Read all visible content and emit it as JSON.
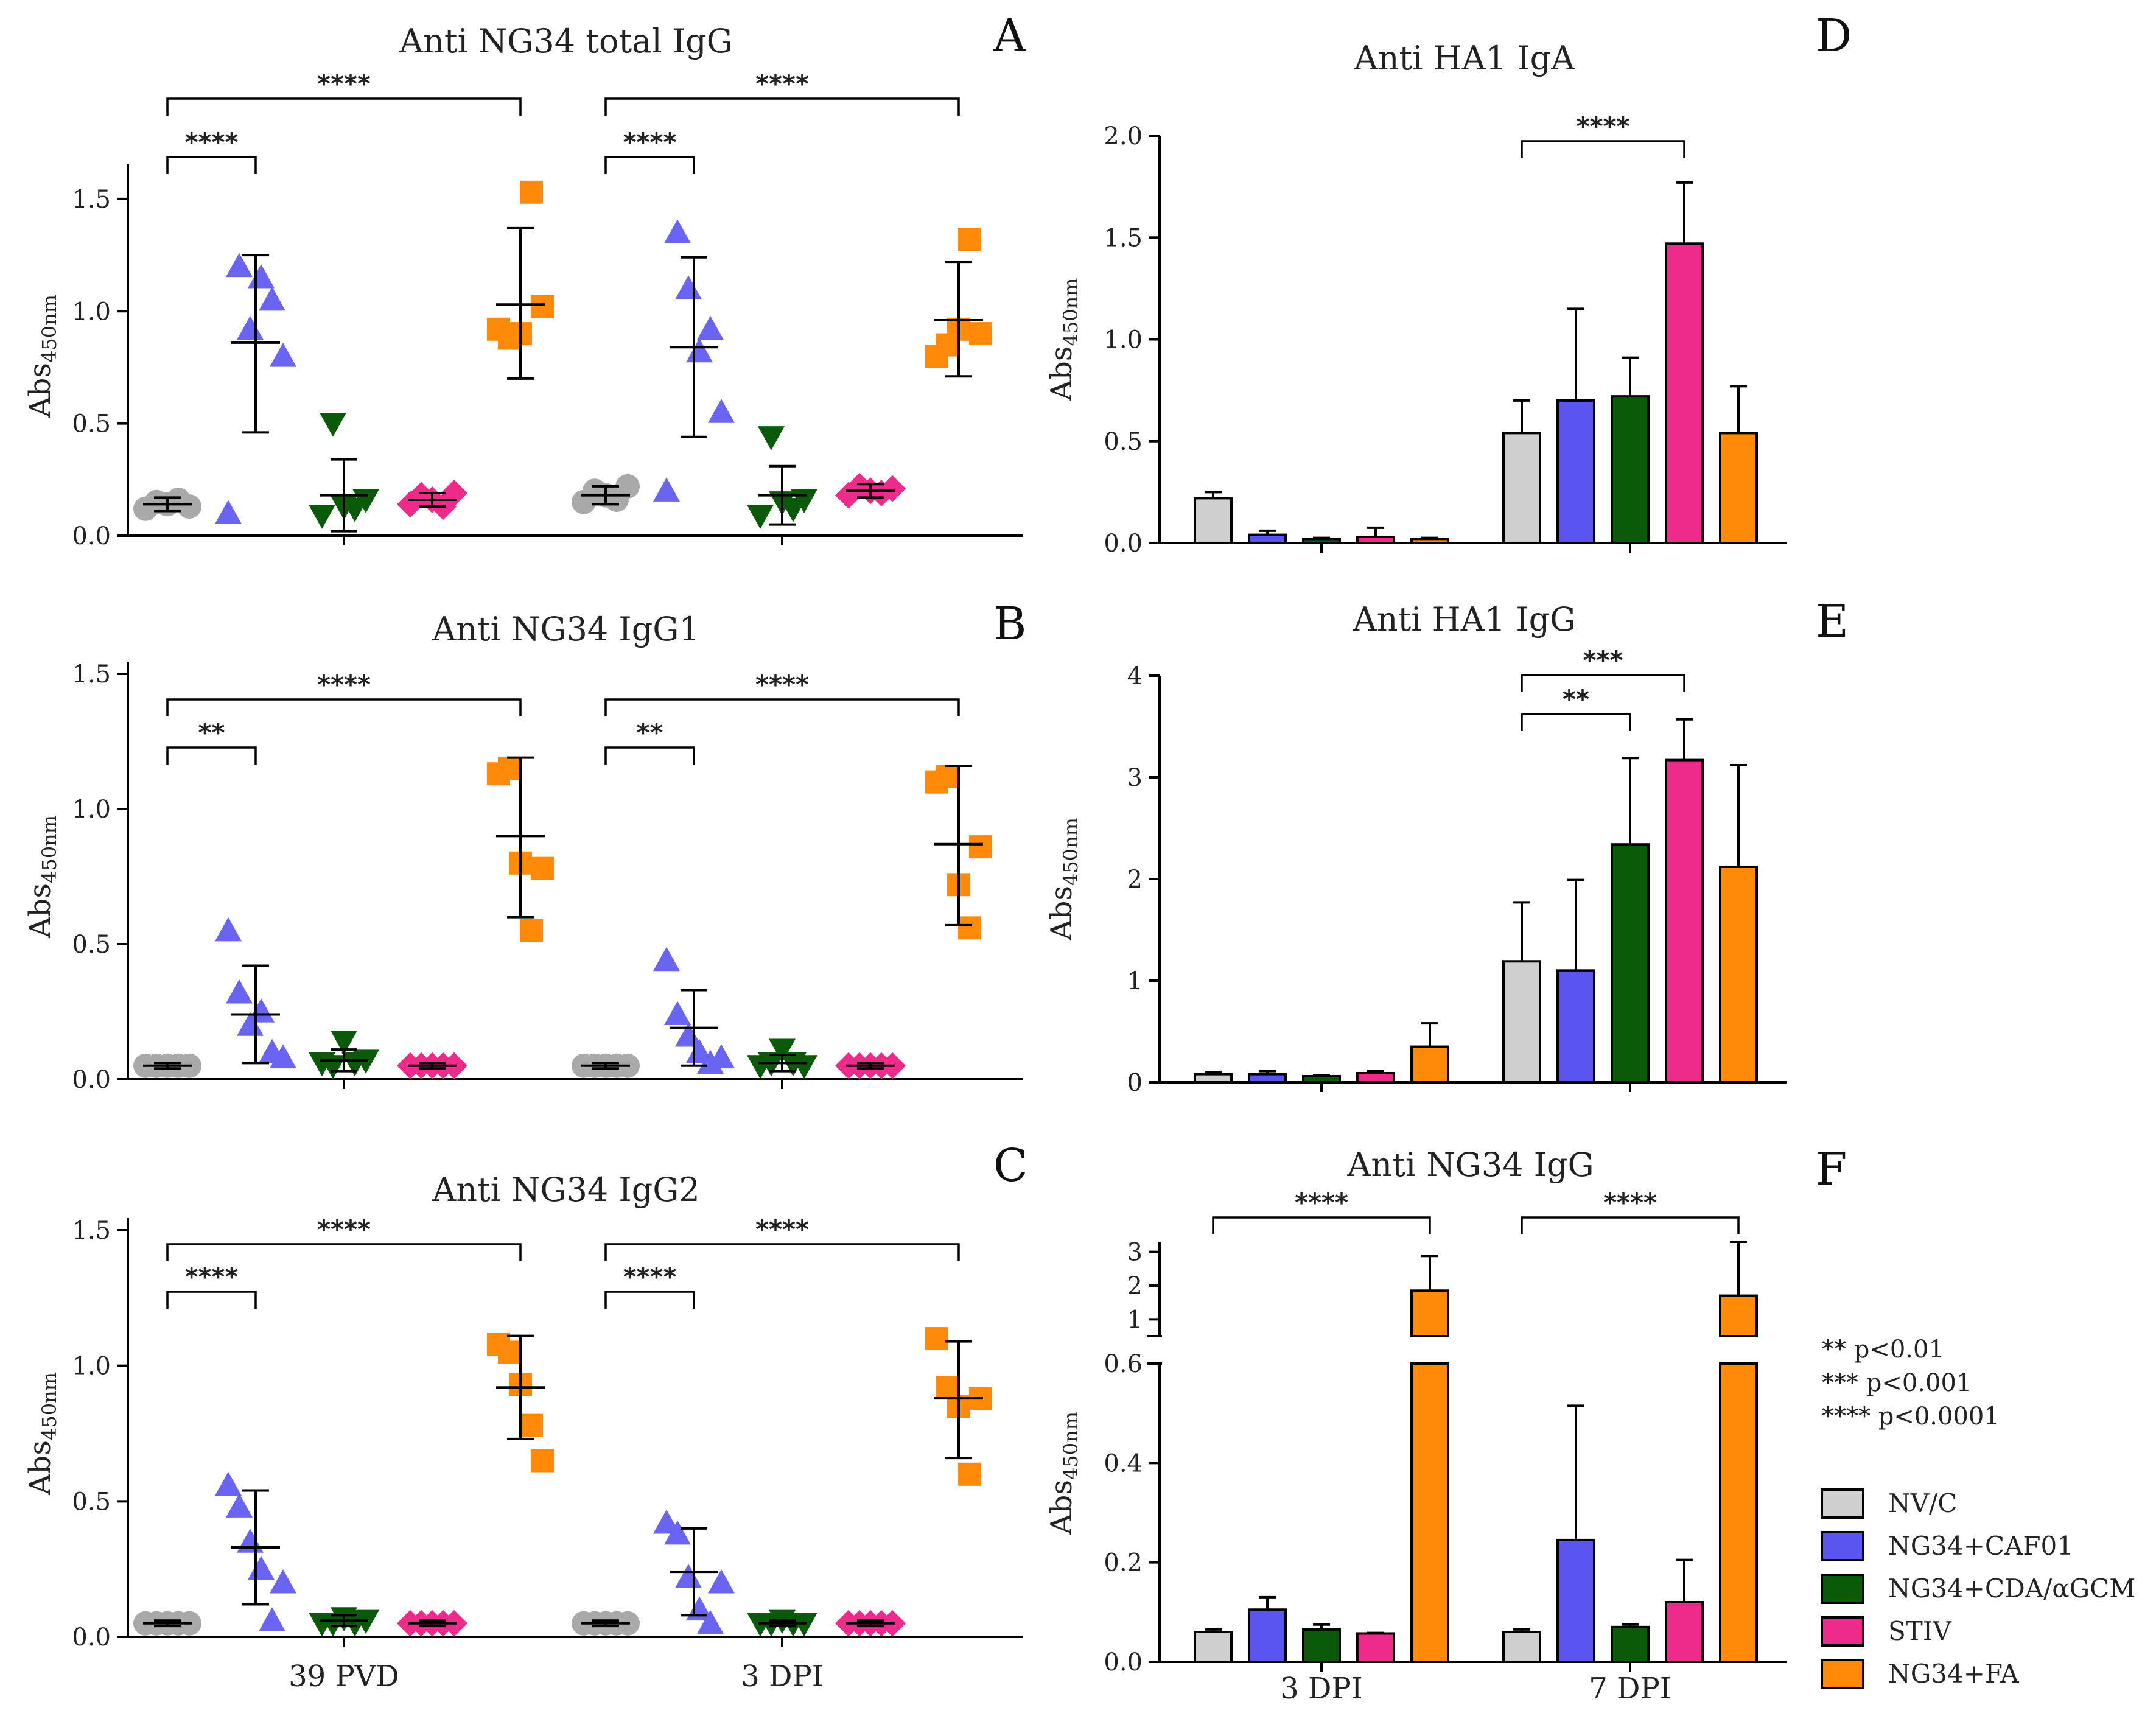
{
  "colors": {
    "NV/C": "#cfcfcf",
    "NG34+CAF01": "#5a55f0",
    "NG34+CDA/αGCM": "#0a5a0a",
    "STIV": "#ee2a8a",
    "NG34+FA": "#ff8a0a",
    "NV/C_marker": "#a9a9a9",
    "NG34+CAF01_marker": "#6a64f2"
  },
  "ylabel": {
    "base": "Abs",
    "sub": "450nm"
  },
  "legend": {
    "items": [
      "NV/C",
      "NG34+CAF01",
      "NG34+CDA/αGCM",
      "STIV",
      "NG34+FA"
    ]
  },
  "pvalue_notes": [
    "** p<0.01",
    "*** p<0.001",
    "**** p<0.0001"
  ],
  "chart_data": [
    {
      "panel": "A",
      "type": "scatter",
      "title": "Anti NG34 total IgG",
      "ylim": [
        0,
        1.6
      ],
      "yticks": [
        "0.0",
        "0.5",
        "1.0",
        "1.5"
      ],
      "categories": [
        "39 PVD",
        "3 DPI"
      ],
      "series": [
        "NV/C",
        "NG34+CAF01",
        "NG34+CDA/αGCM",
        "STIV",
        "NG34+FA"
      ],
      "groups": [
        {
          "points": [
            [
              0.12,
              0.15,
              0.14,
              0.16,
              0.13
            ],
            [
              0.1,
              1.2,
              0.92,
              1.15,
              1.05,
              0.8
            ],
            [
              0.09,
              0.5,
              0.13,
              0.12,
              0.16
            ],
            [
              0.14,
              0.18,
              0.16,
              0.13,
              0.19
            ],
            [
              0.92,
              0.88,
              0.9,
              1.53,
              1.02
            ]
          ],
          "mean": [
            0.14,
            0.86,
            0.18,
            0.16,
            1.03
          ],
          "lo": [
            0.11,
            0.46,
            0.02,
            0.13,
            0.7
          ],
          "hi": [
            0.17,
            1.25,
            0.34,
            0.19,
            1.37
          ]
        },
        {
          "points": [
            [
              0.15,
              0.2,
              0.18,
              0.16,
              0.22
            ],
            [
              0.2,
              1.35,
              1.1,
              0.82,
              0.92,
              0.55
            ],
            [
              0.09,
              0.44,
              0.15,
              0.12,
              0.16
            ],
            [
              0.18,
              0.22,
              0.2,
              0.19,
              0.21
            ],
            [
              0.8,
              0.85,
              0.92,
              1.32,
              0.9
            ]
          ],
          "mean": [
            0.18,
            0.84,
            0.18,
            0.2,
            0.96
          ],
          "lo": [
            0.14,
            0.44,
            0.05,
            0.17,
            0.71
          ],
          "hi": [
            0.22,
            1.24,
            0.31,
            0.23,
            1.22
          ]
        }
      ],
      "brackets": [
        {
          "group": 0,
          "from": 0,
          "to": 1,
          "label": "****",
          "level": 1
        },
        {
          "group": 0,
          "from": 0,
          "to": 4,
          "label": "****",
          "level": 2
        },
        {
          "group": 1,
          "from": 0,
          "to": 1,
          "label": "****",
          "level": 1
        },
        {
          "group": 1,
          "from": 0,
          "to": 4,
          "label": "****",
          "level": 2
        }
      ]
    },
    {
      "panel": "B",
      "type": "scatter",
      "title": "Anti NG34 IgG1",
      "ylim": [
        0,
        1.5
      ],
      "yticks": [
        "0.0",
        "0.5",
        "1.0",
        "1.5"
      ],
      "categories": [
        "39 PVD",
        "3 DPI"
      ],
      "series": [
        "NV/C",
        "NG34+CAF01",
        "NG34+CDA/αGCM",
        "STIV",
        "NG34+FA"
      ],
      "groups": [
        {
          "points": [
            [
              0.05,
              0.05,
              0.05,
              0.05,
              0.05
            ],
            [
              0.55,
              0.32,
              0.2,
              0.25,
              0.1,
              0.08
            ],
            [
              0.06,
              0.05,
              0.14,
              0.06,
              0.07
            ],
            [
              0.05,
              0.05,
              0.05,
              0.05,
              0.05
            ],
            [
              1.13,
              1.15,
              0.8,
              0.55,
              0.78
            ]
          ],
          "mean": [
            0.05,
            0.24,
            0.07,
            0.05,
            0.9
          ],
          "lo": [
            0.04,
            0.06,
            0.03,
            0.04,
            0.6
          ],
          "hi": [
            0.06,
            0.42,
            0.11,
            0.06,
            1.19
          ]
        },
        {
          "points": [
            [
              0.05,
              0.05,
              0.05,
              0.05,
              0.05
            ],
            [
              0.44,
              0.24,
              0.16,
              0.1,
              0.06,
              0.08
            ],
            [
              0.05,
              0.06,
              0.11,
              0.06,
              0.05
            ],
            [
              0.05,
              0.05,
              0.05,
              0.05,
              0.05
            ],
            [
              1.1,
              1.12,
              0.72,
              0.56,
              0.86
            ]
          ],
          "mean": [
            0.05,
            0.19,
            0.06,
            0.05,
            0.87
          ],
          "lo": [
            0.04,
            0.05,
            0.03,
            0.04,
            0.57
          ],
          "hi": [
            0.06,
            0.33,
            0.09,
            0.06,
            1.16
          ]
        }
      ],
      "brackets": [
        {
          "group": 0,
          "from": 0,
          "to": 1,
          "label": "**",
          "level": 1
        },
        {
          "group": 0,
          "from": 0,
          "to": 4,
          "label": "****",
          "level": 2
        },
        {
          "group": 1,
          "from": 0,
          "to": 1,
          "label": "**",
          "level": 1
        },
        {
          "group": 1,
          "from": 0,
          "to": 4,
          "label": "****",
          "level": 2
        }
      ]
    },
    {
      "panel": "C",
      "type": "scatter",
      "title": "Anti NG34 IgG2",
      "ylim": [
        0,
        1.5
      ],
      "yticks": [
        "0.0",
        "0.5",
        "1.0",
        "1.5"
      ],
      "categories": [
        "39 PVD",
        "3 DPI"
      ],
      "series": [
        "NV/C",
        "NG34+CAF01",
        "NG34+CDA/αGCM",
        "STIV",
        "NG34+FA"
      ],
      "groups": [
        {
          "points": [
            [
              0.05,
              0.05,
              0.05,
              0.05,
              0.05
            ],
            [
              0.56,
              0.48,
              0.35,
              0.25,
              0.06,
              0.2
            ],
            [
              0.05,
              0.05,
              0.07,
              0.05,
              0.06
            ],
            [
              0.05,
              0.05,
              0.05,
              0.05,
              0.05
            ],
            [
              1.08,
              1.05,
              0.93,
              0.78,
              0.65
            ]
          ],
          "mean": [
            0.05,
            0.33,
            0.06,
            0.05,
            0.92
          ],
          "lo": [
            0.04,
            0.12,
            0.04,
            0.04,
            0.73
          ],
          "hi": [
            0.06,
            0.54,
            0.08,
            0.06,
            1.11
          ]
        },
        {
          "points": [
            [
              0.05,
              0.05,
              0.05,
              0.05,
              0.05
            ],
            [
              0.42,
              0.38,
              0.22,
              0.1,
              0.05,
              0.2
            ],
            [
              0.05,
              0.05,
              0.06,
              0.05,
              0.05
            ],
            [
              0.05,
              0.05,
              0.05,
              0.05,
              0.05
            ],
            [
              1.1,
              0.92,
              0.85,
              0.6,
              0.88
            ]
          ],
          "mean": [
            0.05,
            0.24,
            0.05,
            0.05,
            0.88
          ],
          "lo": [
            0.04,
            0.08,
            0.04,
            0.04,
            0.66
          ],
          "hi": [
            0.06,
            0.4,
            0.06,
            0.06,
            1.09
          ]
        }
      ],
      "brackets": [
        {
          "group": 0,
          "from": 0,
          "to": 1,
          "label": "****",
          "level": 1
        },
        {
          "group": 0,
          "from": 0,
          "to": 4,
          "label": "****",
          "level": 2
        },
        {
          "group": 1,
          "from": 0,
          "to": 1,
          "label": "****",
          "level": 1
        },
        {
          "group": 1,
          "from": 0,
          "to": 4,
          "label": "****",
          "level": 2
        }
      ],
      "xlabels": [
        "39 PVD",
        "3 DPI"
      ]
    },
    {
      "panel": "D",
      "type": "bar",
      "title": "Anti HA1 IgA",
      "ylim": [
        0,
        2.0
      ],
      "yticks": [
        "0.0",
        "0.5",
        "1.0",
        "1.5",
        "2.0"
      ],
      "categories": [
        "",
        ""
      ],
      "series": [
        "NV/C",
        "NG34+CAF01",
        "NG34+CDA/αGCM",
        "STIV",
        "NG34+FA"
      ],
      "values": [
        [
          0.22,
          0.04,
          0.02,
          0.03,
          0.02
        ],
        [
          0.54,
          0.7,
          0.72,
          1.47,
          0.54
        ]
      ],
      "errors": [
        [
          0.25,
          0.06,
          0.025,
          0.075,
          0.025
        ],
        [
          0.7,
          1.15,
          0.91,
          1.77,
          0.77
        ]
      ],
      "brackets": [
        {
          "group": 1,
          "from": 0,
          "to": 3,
          "label": "****",
          "level": 1
        }
      ]
    },
    {
      "panel": "E",
      "type": "bar",
      "title": "Anti HA1 IgG",
      "ylim": [
        0,
        4
      ],
      "yticks": [
        "0",
        "1",
        "2",
        "3",
        "4"
      ],
      "categories": [
        "",
        ""
      ],
      "series": [
        "NV/C",
        "NG34+CAF01",
        "NG34+CDA/αGCM",
        "STIV",
        "NG34+FA"
      ],
      "values": [
        [
          0.08,
          0.08,
          0.06,
          0.09,
          0.35
        ],
        [
          1.19,
          1.1,
          2.34,
          3.17,
          2.12
        ]
      ],
      "errors": [
        [
          0.1,
          0.11,
          0.07,
          0.11,
          0.58
        ],
        [
          1.77,
          1.99,
          3.19,
          3.57,
          3.12
        ]
      ],
      "brackets": [
        {
          "group": 1,
          "from": 0,
          "to": 2,
          "label": "**",
          "level": 1
        },
        {
          "group": 1,
          "from": 0,
          "to": 3,
          "label": "***",
          "level": 2
        }
      ]
    },
    {
      "panel": "F",
      "type": "bar",
      "title": "Anti NG34 IgG",
      "ylim_lower": [
        0,
        0.6
      ],
      "yticks_lower": [
        "0.0",
        "0.2",
        "0.4",
        "0.6"
      ],
      "ylim_upper": [
        0.5,
        3.3
      ],
      "yticks_upper": [
        "1",
        "2",
        "3"
      ],
      "categories": [
        "3 DPI",
        "7 DPI"
      ],
      "series": [
        "NV/C",
        "NG34+CAF01",
        "NG34+CDA/αGCM",
        "STIV",
        "NG34+FA"
      ],
      "values": [
        [
          0.06,
          0.105,
          0.065,
          0.057,
          1.85
        ],
        [
          0.06,
          0.245,
          0.07,
          0.12,
          1.7
        ]
      ],
      "errors": [
        [
          0.065,
          0.13,
          0.075,
          0.058,
          2.88
        ],
        [
          0.065,
          0.515,
          0.075,
          0.205,
          3.3
        ]
      ],
      "brackets": [
        {
          "group": 0,
          "from": 0,
          "to": 4,
          "label": "****",
          "level": 1
        },
        {
          "group": 1,
          "from": 0,
          "to": 4,
          "label": "****",
          "level": 1
        }
      ]
    }
  ]
}
